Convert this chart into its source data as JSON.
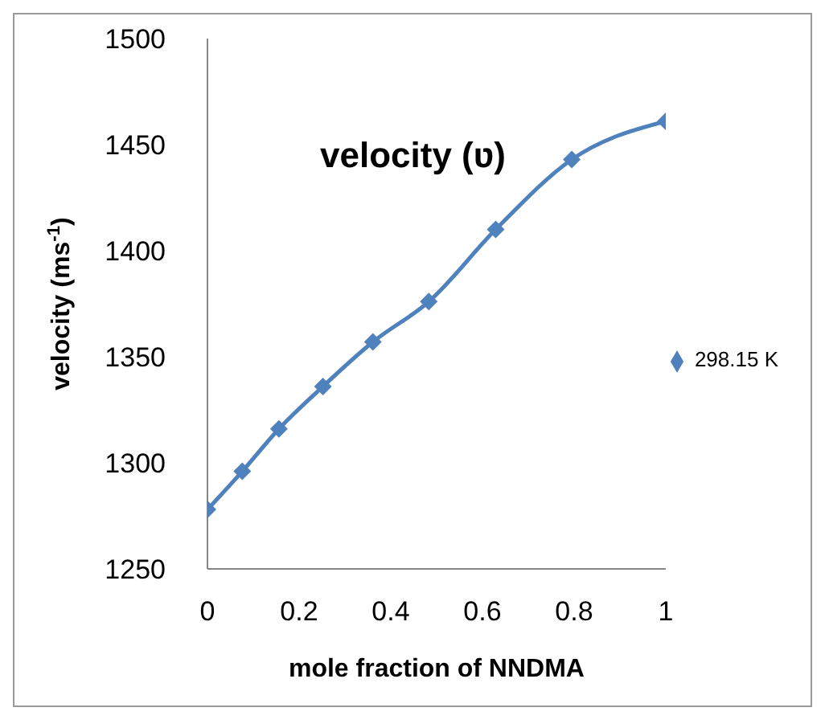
{
  "chart_data": {
    "type": "line",
    "title": "velocity (ʋ)",
    "xlabel": "mole fraction of NNDMA",
    "ylabel": "velocity (ms$^{-1}$)",
    "x": [
      0,
      0.076,
      0.156,
      0.252,
      0.361,
      0.483,
      0.629,
      0.795,
      1.0
    ],
    "series": [
      {
        "name": "298.15 K",
        "color": "#4f81bd",
        "values": [
          1278,
          1296,
          1316,
          1336,
          1357,
          1376,
          1410,
          1443,
          1461
        ]
      }
    ],
    "xlim": [
      0,
      1
    ],
    "xticks": [
      0,
      0.2,
      0.4,
      0.6,
      0.8,
      1
    ],
    "ylim": [
      1250,
      1500
    ],
    "yticks": [
      1250,
      1300,
      1350,
      1400,
      1450,
      1500
    ],
    "grid": false,
    "legend": "right",
    "marker": "diamond",
    "line_style": "solid"
  }
}
